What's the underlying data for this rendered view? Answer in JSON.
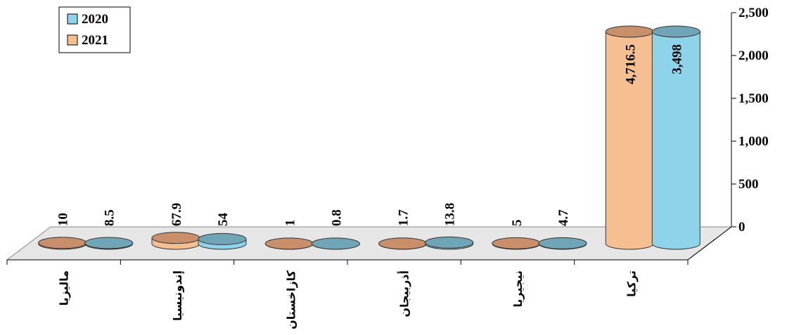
{
  "chart_data": {
    "type": "bar3d",
    "categories": [
      "ماليزيا",
      "إندونيسيا",
      "كازاخستان",
      "أذربيجان",
      "نيجيريا",
      "تركيا"
    ],
    "series": [
      {
        "name": "2020",
        "color": "#8fd3ea",
        "values": [
          8.5,
          54,
          0.8,
          13.8,
          4.7,
          3498
        ],
        "value_labels": [
          "8.5",
          "54",
          "0.8",
          "13.8",
          "4.7",
          "3,498"
        ]
      },
      {
        "name": "2021",
        "color": "#f6bf92",
        "values": [
          10,
          67.9,
          1,
          1.7,
          5,
          4716.5
        ],
        "value_labels": [
          "10",
          "67.9",
          "1",
          "1.7",
          "5",
          "4,716.5"
        ]
      }
    ],
    "ylim": [
      0,
      2500
    ],
    "yticks": [
      0,
      {
        "value": 500,
        "label": "500"
      },
      {
        "value": 1000,
        "label": "1,000"
      },
      {
        "value": 1500,
        "label": "1,500"
      },
      {
        "value": 2000,
        "label": "2,000"
      },
      {
        "value": 2500,
        "label": "2,500"
      }
    ],
    "legend": "top-left"
  }
}
